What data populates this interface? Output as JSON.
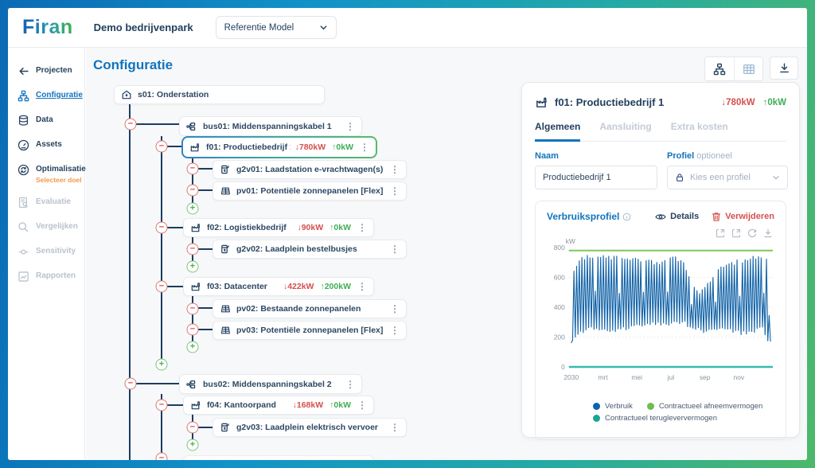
{
  "header": {
    "logo": "Firan",
    "project_title": "Demo bedrijvenpark",
    "model_select": "Referentie Model"
  },
  "sidebar": {
    "items": [
      {
        "label": "Projecten",
        "icon": "arrow-left-icon",
        "state": "normal"
      },
      {
        "label": "Configuratie",
        "icon": "sitemap-icon",
        "state": "active"
      },
      {
        "label": "Data",
        "icon": "database-icon",
        "state": "normal"
      },
      {
        "label": "Assets",
        "icon": "gauge-icon",
        "state": "normal"
      },
      {
        "label": "Optimalisatie",
        "icon": "optimize-icon",
        "state": "normal",
        "sub": "Selecteer doel"
      },
      {
        "label": "Evaluatie",
        "icon": "doc-search-icon",
        "state": "disabled"
      },
      {
        "label": "Vergelijken",
        "icon": "magnifier-icon",
        "state": "disabled"
      },
      {
        "label": "Sensitivity",
        "icon": "slider-icon",
        "state": "disabled"
      },
      {
        "label": "Rapporten",
        "icon": "report-icon",
        "state": "disabled"
      }
    ]
  },
  "main": {
    "title": "Configuratie"
  },
  "tree": {
    "nodes": {
      "s01": {
        "icon": "substation-icon",
        "label": "s01: Onderstation"
      },
      "bus01": {
        "icon": "bus-icon",
        "label": "bus01: Middenspanningskabel 1",
        "menu": true
      },
      "f01": {
        "icon": "factory-icon",
        "label": "f01: Productiebedrijf 1",
        "down": "780kW",
        "up": "0kW",
        "menu": true,
        "selected": true
      },
      "g2v01": {
        "icon": "charger-icon",
        "label": "g2v01: Laadstation e-vrachtwagen(s)",
        "menu": true
      },
      "pv01": {
        "icon": "solar-icon",
        "label": "pv01: Potentiële zonnepanelen [Flex]",
        "menu": true
      },
      "f02": {
        "icon": "factory-icon",
        "label": "f02: Logistiekbedrijf",
        "down": "90kW",
        "up": "0kW",
        "menu": true
      },
      "g2v02": {
        "icon": "charger-icon",
        "label": "g2v02: Laadplein bestelbusjes",
        "menu": true
      },
      "f03": {
        "icon": "factory-icon",
        "label": "f03: Datacenter",
        "down": "422kW",
        "up": "200kW",
        "menu": true
      },
      "pv02": {
        "icon": "solar-icon",
        "label": "pv02: Bestaande zonnepanelen",
        "menu": true
      },
      "pv03": {
        "icon": "solar-icon",
        "label": "pv03: Potentiële zonnepanelen [Flex]",
        "menu": true
      },
      "bus02": {
        "icon": "bus-icon",
        "label": "bus02: Middenspanningskabel 2",
        "menu": true
      },
      "f04": {
        "icon": "factory-icon",
        "label": "f04: Kantoorpand",
        "down": "168kW",
        "up": "0kW",
        "menu": true
      },
      "g2v03": {
        "icon": "charger-icon",
        "label": "g2v03: Laadplein elektrisch vervoer",
        "menu": true
      },
      "f05": {
        "icon": "factory-icon",
        "label": "",
        "partial": true
      }
    }
  },
  "panel": {
    "title": "f01: Productiebedrijf 1",
    "down": "780kW",
    "up": "0kW",
    "tabs": [
      "Algemeen",
      "Aansluiting",
      "Extra kosten"
    ],
    "naam_label": "Naam",
    "naam_value": "Productiebedrijf 1",
    "profiel_label": "Profiel",
    "profiel_optional": "optioneel",
    "profiel_placeholder": "Kies een profiel",
    "profile_section": {
      "title": "Verbruiksprofiel",
      "details": "Details",
      "delete": "Verwijderen"
    }
  },
  "chart_data": {
    "type": "line",
    "title": "Verbruiksprofiel",
    "ylabel": "kW",
    "ylim": [
      0,
      800
    ],
    "y_ticks": [
      0,
      200,
      400,
      600,
      800
    ],
    "x_ticks": [
      "2030",
      "mrt",
      "mei",
      "jul",
      "sep",
      "nov"
    ],
    "grid": "dotted-horizontal",
    "legend_position": "bottom",
    "series": [
      {
        "name": "Verbruik",
        "color": "#1464a8",
        "style": "dense-daily-spikes",
        "upper_envelope_semimonthly": [
          600,
          740,
          755,
          760,
          745,
          750,
          740,
          735,
          730,
          725,
          700,
          730,
          745,
          700,
          560,
          510,
          580,
          660,
          700,
          715,
          730,
          745,
          755,
          740
        ],
        "lower_envelope_semimonthly": [
          160,
          230,
          250,
          260,
          240,
          230,
          250,
          260,
          270,
          280,
          290,
          270,
          300,
          290,
          260,
          240,
          230,
          240,
          250,
          230,
          220,
          230,
          260,
          160
        ]
      },
      {
        "name": "Contractueel afneemvermogen",
        "type": "hline",
        "value": 780,
        "color": "#7dc75a"
      },
      {
        "name": "Contractueel terugleververmogen",
        "type": "hline",
        "value": 0,
        "color": "#33bdab"
      }
    ]
  }
}
